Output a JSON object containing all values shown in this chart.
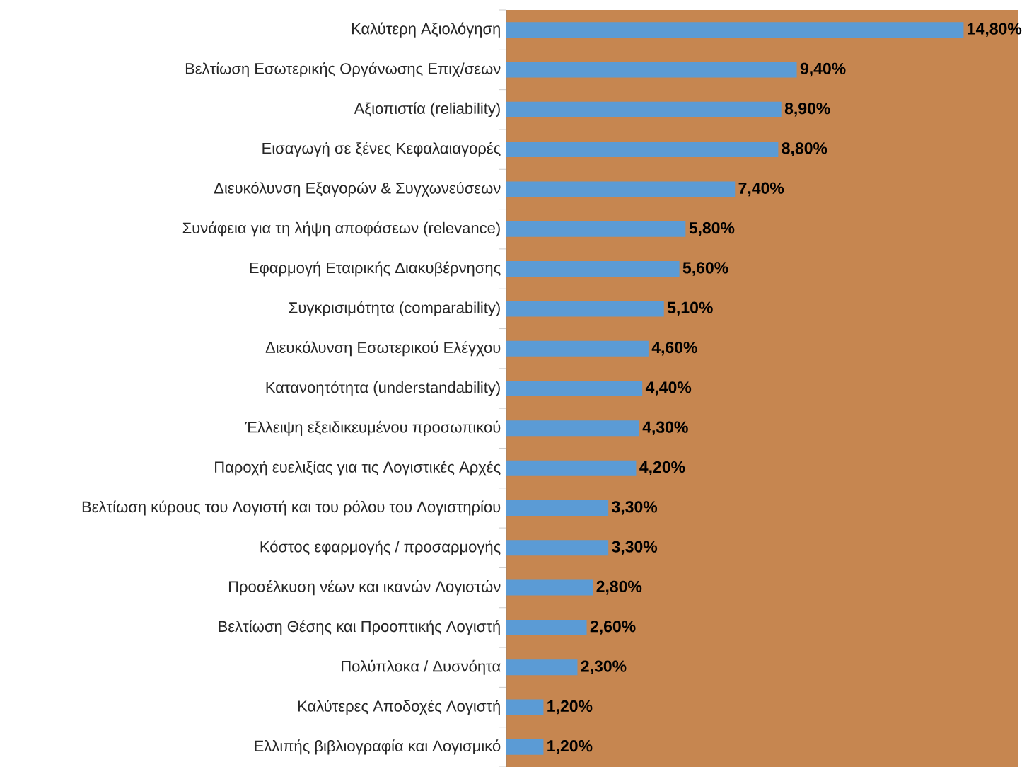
{
  "chart_data": {
    "type": "bar",
    "orientation": "horizontal",
    "color": "#5b9bd5",
    "categories": [
      "Καλύτερη Αξιολόγηση",
      "Βελτίωση Εσωτερικής Οργάνωσης Επιχ/σεων",
      "Αξιοπιστία (reliability)",
      "Εισαγωγή σε ξένες Κεφαλαιαγορές",
      "Διευκόλυνση Εξαγορών & Συγχωνεύσεων",
      "Συνάφεια για τη λήψη αποφάσεων (relevance)",
      "Εφαρμογή Εταιρικής Διακυβέρνησης",
      "Συγκρισιμότητα (comparability)",
      "Διευκόλυνση Εσωτερικού Ελέγχου",
      "Κατανοητότητα (understandability)",
      "Έλλειψη εξειδικευμένου προσωπικού",
      "Παροχή ευελιξίας για τις Λογιστικές Αρχές",
      "Βελτίωση κύρους του Λογιστή και του ρόλου του Λογιστηρίου",
      "Κόστος εφαρμογής / προσαρμογής",
      "Προσέλκυση νέων και ικανών Λογιστών",
      "Βελτίωση Θέσης και Προοπτικής Λογιστή",
      "Πολύπλοκα / Δυσνόητα",
      "Καλύτερες Αποδοχές Λογιστή",
      "Ελλιπής βιβλιογραφία και Λογισμικό"
    ],
    "values": [
      14.8,
      9.4,
      8.9,
      8.8,
      7.4,
      5.8,
      5.6,
      5.1,
      4.6,
      4.4,
      4.3,
      4.2,
      3.3,
      3.3,
      2.8,
      2.6,
      2.3,
      1.2,
      1.2
    ],
    "value_labels": [
      "14,80%",
      "9,40%",
      "8,90%",
      "8,80%",
      "7,40%",
      "5,80%",
      "5,60%",
      "5,10%",
      "4,60%",
      "4,40%",
      "4,30%",
      "4,20%",
      "3,30%",
      "3,30%",
      "2,80%",
      "2,60%",
      "2,30%",
      "1,20%",
      "1,20%"
    ]
  }
}
